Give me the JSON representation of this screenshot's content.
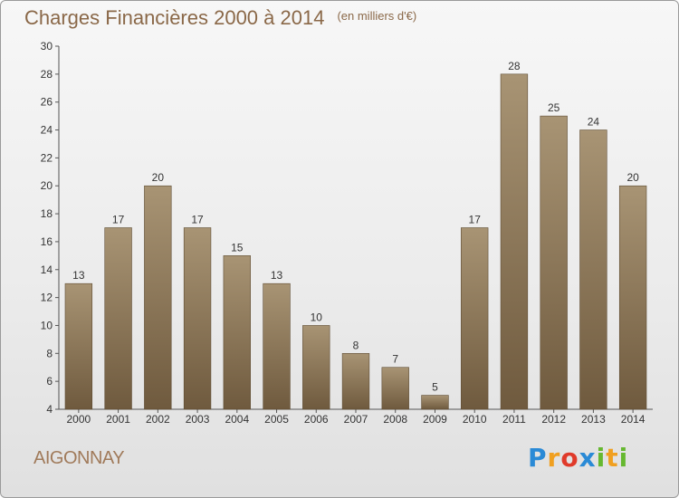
{
  "header": {
    "title": "Charges Financières 2000 à 2014",
    "unit": "(en milliers d'€)"
  },
  "commune": "AIGONNAY",
  "logo": {
    "text": "Proxiti",
    "letters": [
      "P",
      "r",
      "o",
      "x",
      "i",
      "t",
      "i"
    ]
  },
  "colors": {
    "bar_top": "#a89474",
    "bar_bottom": "#6f5a3e",
    "title": "#8a6848",
    "commune": "#a07a5a"
  },
  "chart_data": {
    "type": "bar",
    "title": "Charges Financières 2000 à 2014",
    "subtitle": "(en milliers d'€)",
    "categories": [
      "2000",
      "2001",
      "2002",
      "2003",
      "2004",
      "2005",
      "2006",
      "2007",
      "2008",
      "2009",
      "2010",
      "2011",
      "2012",
      "2013",
      "2014"
    ],
    "values": [
      13,
      17,
      20,
      17,
      15,
      13,
      10,
      8,
      7,
      5,
      17,
      28,
      25,
      24,
      20
    ],
    "ylim": [
      4,
      30
    ],
    "yticks": [
      4,
      6,
      8,
      10,
      12,
      14,
      16,
      18,
      20,
      22,
      24,
      26,
      28,
      30
    ],
    "grid": false,
    "data_labels": true
  }
}
